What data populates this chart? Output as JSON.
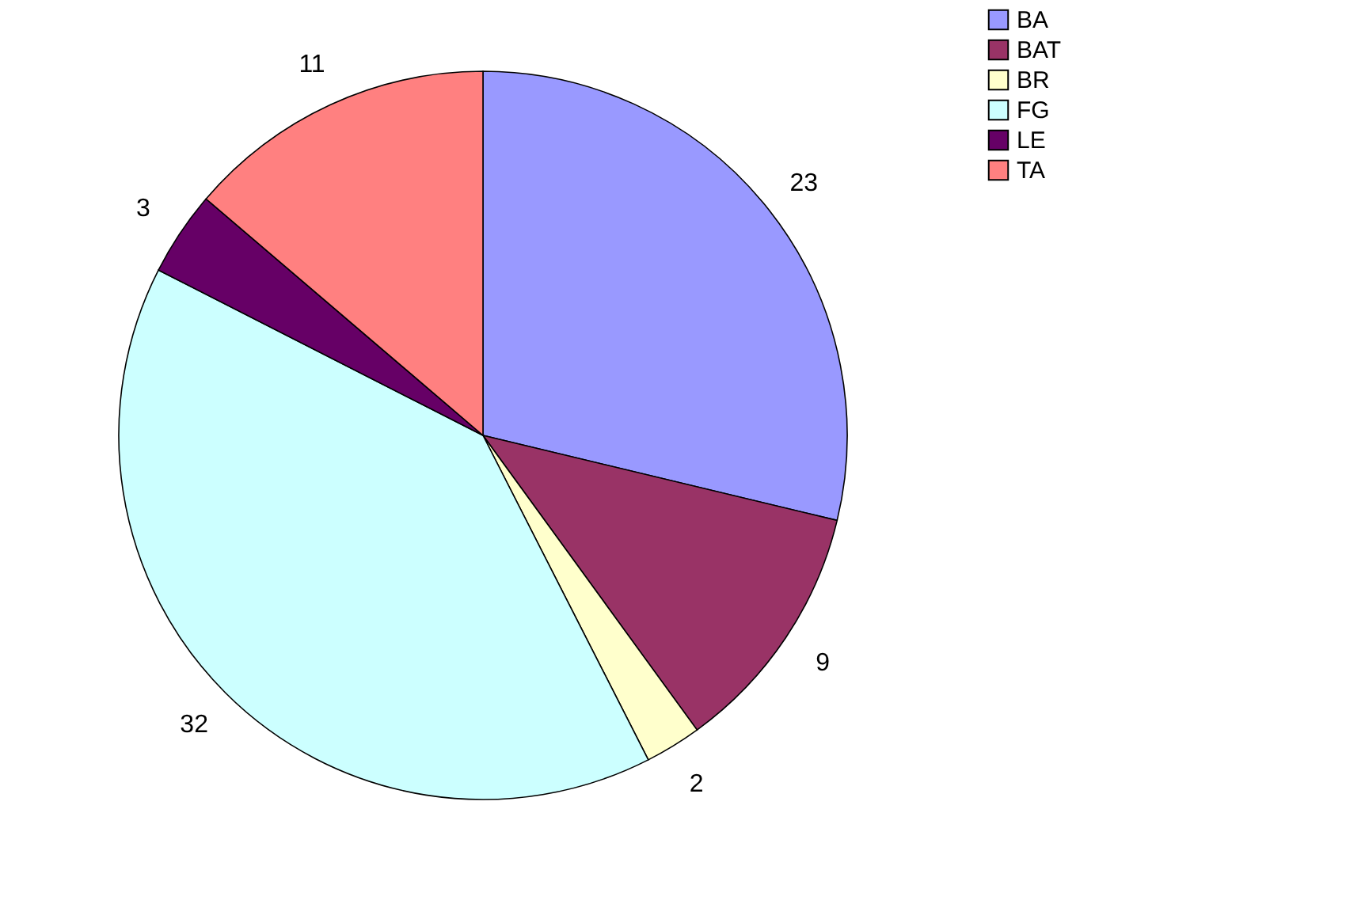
{
  "chart_data": {
    "type": "pie",
    "categories": [
      "BA",
      "BAT",
      "BR",
      "FG",
      "LE",
      "TA"
    ],
    "values": [
      23,
      9,
      2,
      32,
      3,
      11
    ],
    "colors": [
      "#9999ff",
      "#993366",
      "#ffffcc",
      "#ccffff",
      "#660066",
      "#ff8080"
    ],
    "data_labels": true,
    "legend": "right"
  }
}
